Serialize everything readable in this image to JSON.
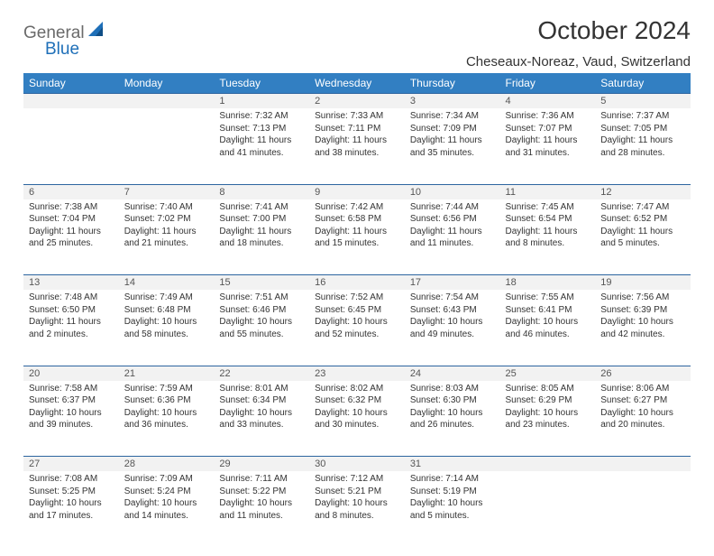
{
  "brand": {
    "word1": "General",
    "word2": "Blue"
  },
  "title": "October 2024",
  "location": "Cheseaux-Noreaz, Vaud, Switzerland",
  "colors": {
    "header_bg": "#327fc2",
    "header_text": "#ffffff",
    "daynum_bg": "#f2f2f2",
    "row_border": "#2d65a0",
    "brand_grey": "#6a6a6a",
    "brand_blue": "#1e6fb8"
  },
  "day_headers": [
    "Sunday",
    "Monday",
    "Tuesday",
    "Wednesday",
    "Thursday",
    "Friday",
    "Saturday"
  ],
  "weeks": [
    [
      null,
      null,
      {
        "n": "1",
        "sr": "7:32 AM",
        "ss": "7:13 PM",
        "dl": "11 hours and 41 minutes."
      },
      {
        "n": "2",
        "sr": "7:33 AM",
        "ss": "7:11 PM",
        "dl": "11 hours and 38 minutes."
      },
      {
        "n": "3",
        "sr": "7:34 AM",
        "ss": "7:09 PM",
        "dl": "11 hours and 35 minutes."
      },
      {
        "n": "4",
        "sr": "7:36 AM",
        "ss": "7:07 PM",
        "dl": "11 hours and 31 minutes."
      },
      {
        "n": "5",
        "sr": "7:37 AM",
        "ss": "7:05 PM",
        "dl": "11 hours and 28 minutes."
      }
    ],
    [
      {
        "n": "6",
        "sr": "7:38 AM",
        "ss": "7:04 PM",
        "dl": "11 hours and 25 minutes."
      },
      {
        "n": "7",
        "sr": "7:40 AM",
        "ss": "7:02 PM",
        "dl": "11 hours and 21 minutes."
      },
      {
        "n": "8",
        "sr": "7:41 AM",
        "ss": "7:00 PM",
        "dl": "11 hours and 18 minutes."
      },
      {
        "n": "9",
        "sr": "7:42 AM",
        "ss": "6:58 PM",
        "dl": "11 hours and 15 minutes."
      },
      {
        "n": "10",
        "sr": "7:44 AM",
        "ss": "6:56 PM",
        "dl": "11 hours and 11 minutes."
      },
      {
        "n": "11",
        "sr": "7:45 AM",
        "ss": "6:54 PM",
        "dl": "11 hours and 8 minutes."
      },
      {
        "n": "12",
        "sr": "7:47 AM",
        "ss": "6:52 PM",
        "dl": "11 hours and 5 minutes."
      }
    ],
    [
      {
        "n": "13",
        "sr": "7:48 AM",
        "ss": "6:50 PM",
        "dl": "11 hours and 2 minutes."
      },
      {
        "n": "14",
        "sr": "7:49 AM",
        "ss": "6:48 PM",
        "dl": "10 hours and 58 minutes."
      },
      {
        "n": "15",
        "sr": "7:51 AM",
        "ss": "6:46 PM",
        "dl": "10 hours and 55 minutes."
      },
      {
        "n": "16",
        "sr": "7:52 AM",
        "ss": "6:45 PM",
        "dl": "10 hours and 52 minutes."
      },
      {
        "n": "17",
        "sr": "7:54 AM",
        "ss": "6:43 PM",
        "dl": "10 hours and 49 minutes."
      },
      {
        "n": "18",
        "sr": "7:55 AM",
        "ss": "6:41 PM",
        "dl": "10 hours and 46 minutes."
      },
      {
        "n": "19",
        "sr": "7:56 AM",
        "ss": "6:39 PM",
        "dl": "10 hours and 42 minutes."
      }
    ],
    [
      {
        "n": "20",
        "sr": "7:58 AM",
        "ss": "6:37 PM",
        "dl": "10 hours and 39 minutes."
      },
      {
        "n": "21",
        "sr": "7:59 AM",
        "ss": "6:36 PM",
        "dl": "10 hours and 36 minutes."
      },
      {
        "n": "22",
        "sr": "8:01 AM",
        "ss": "6:34 PM",
        "dl": "10 hours and 33 minutes."
      },
      {
        "n": "23",
        "sr": "8:02 AM",
        "ss": "6:32 PM",
        "dl": "10 hours and 30 minutes."
      },
      {
        "n": "24",
        "sr": "8:03 AM",
        "ss": "6:30 PM",
        "dl": "10 hours and 26 minutes."
      },
      {
        "n": "25",
        "sr": "8:05 AM",
        "ss": "6:29 PM",
        "dl": "10 hours and 23 minutes."
      },
      {
        "n": "26",
        "sr": "8:06 AM",
        "ss": "6:27 PM",
        "dl": "10 hours and 20 minutes."
      }
    ],
    [
      {
        "n": "27",
        "sr": "7:08 AM",
        "ss": "5:25 PM",
        "dl": "10 hours and 17 minutes."
      },
      {
        "n": "28",
        "sr": "7:09 AM",
        "ss": "5:24 PM",
        "dl": "10 hours and 14 minutes."
      },
      {
        "n": "29",
        "sr": "7:11 AM",
        "ss": "5:22 PM",
        "dl": "10 hours and 11 minutes."
      },
      {
        "n": "30",
        "sr": "7:12 AM",
        "ss": "5:21 PM",
        "dl": "10 hours and 8 minutes."
      },
      {
        "n": "31",
        "sr": "7:14 AM",
        "ss": "5:19 PM",
        "dl": "10 hours and 5 minutes."
      },
      null,
      null
    ]
  ],
  "labels": {
    "sunrise": "Sunrise:",
    "sunset": "Sunset:",
    "daylight": "Daylight:"
  }
}
